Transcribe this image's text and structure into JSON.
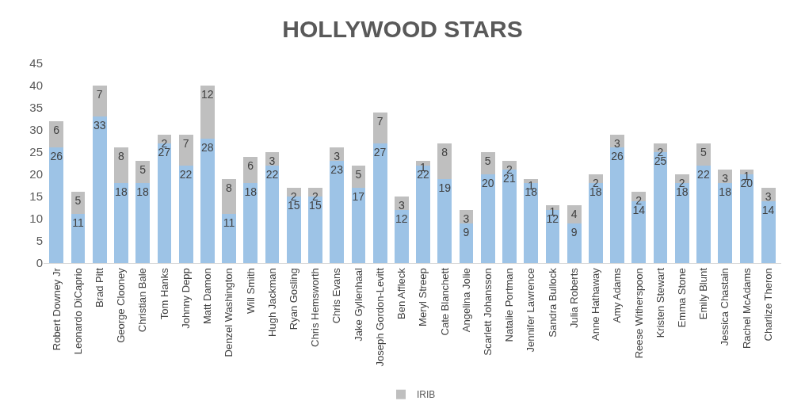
{
  "chart_data": {
    "type": "bar",
    "title": "HOLLYWOOD STARS",
    "stacked": true,
    "data_labels": true,
    "legend": "bottom",
    "grid": false,
    "categories": [
      "Robert Downey Jr",
      "Leonardo DiCaprio",
      "Brad Pitt",
      "George Clooney",
      "Christian Bale",
      "Tom Hanks",
      "Johnny Depp",
      "Matt Damon",
      "Denzel Washington",
      "Will Smith",
      "Hugh Jackman",
      "Ryan Gosling",
      "Chris Hemsworth",
      "Chris Evans",
      "Jake Gyllenhaal",
      "Joseph Gordon-Levitt",
      "Ben Affleck",
      "Meryl Streep",
      "Cate Blanchett",
      "Angelina Jolie",
      "Scarlett Johansson",
      "Natalie Portman",
      "Jennifer Lawrence",
      "Sandra Bullock",
      "Julia Roberts",
      "Anne Hathaway",
      "Amy Adams",
      "Reese Witherspoon",
      "Kristen Stewart",
      "Emma Stone",
      "Emily Blunt",
      "Jessica Chastain",
      "Rachel McAdams",
      "Charlize Theron"
    ],
    "series": [
      {
        "color": "#9dc3e6",
        "values": [
          26,
          11,
          33,
          18,
          18,
          27,
          22,
          28,
          11,
          18,
          22,
          15,
          15,
          23,
          17,
          27,
          12,
          22,
          19,
          9,
          20,
          21,
          18,
          12,
          9,
          18,
          26,
          14,
          25,
          18,
          22,
          18,
          20,
          14
        ]
      },
      {
        "name": "IRIB",
        "color": "#bfbfbf",
        "values": [
          6,
          5,
          7,
          8,
          5,
          2,
          7,
          12,
          8,
          6,
          3,
          2,
          2,
          3,
          5,
          7,
          3,
          1,
          8,
          3,
          5,
          2,
          1,
          1,
          4,
          2,
          3,
          2,
          2,
          2,
          5,
          3,
          1,
          3
        ]
      }
    ],
    "ylim": [
      0,
      45
    ],
    "yticks": [
      0,
      5,
      10,
      15,
      20,
      25,
      30,
      35,
      40,
      45
    ]
  }
}
